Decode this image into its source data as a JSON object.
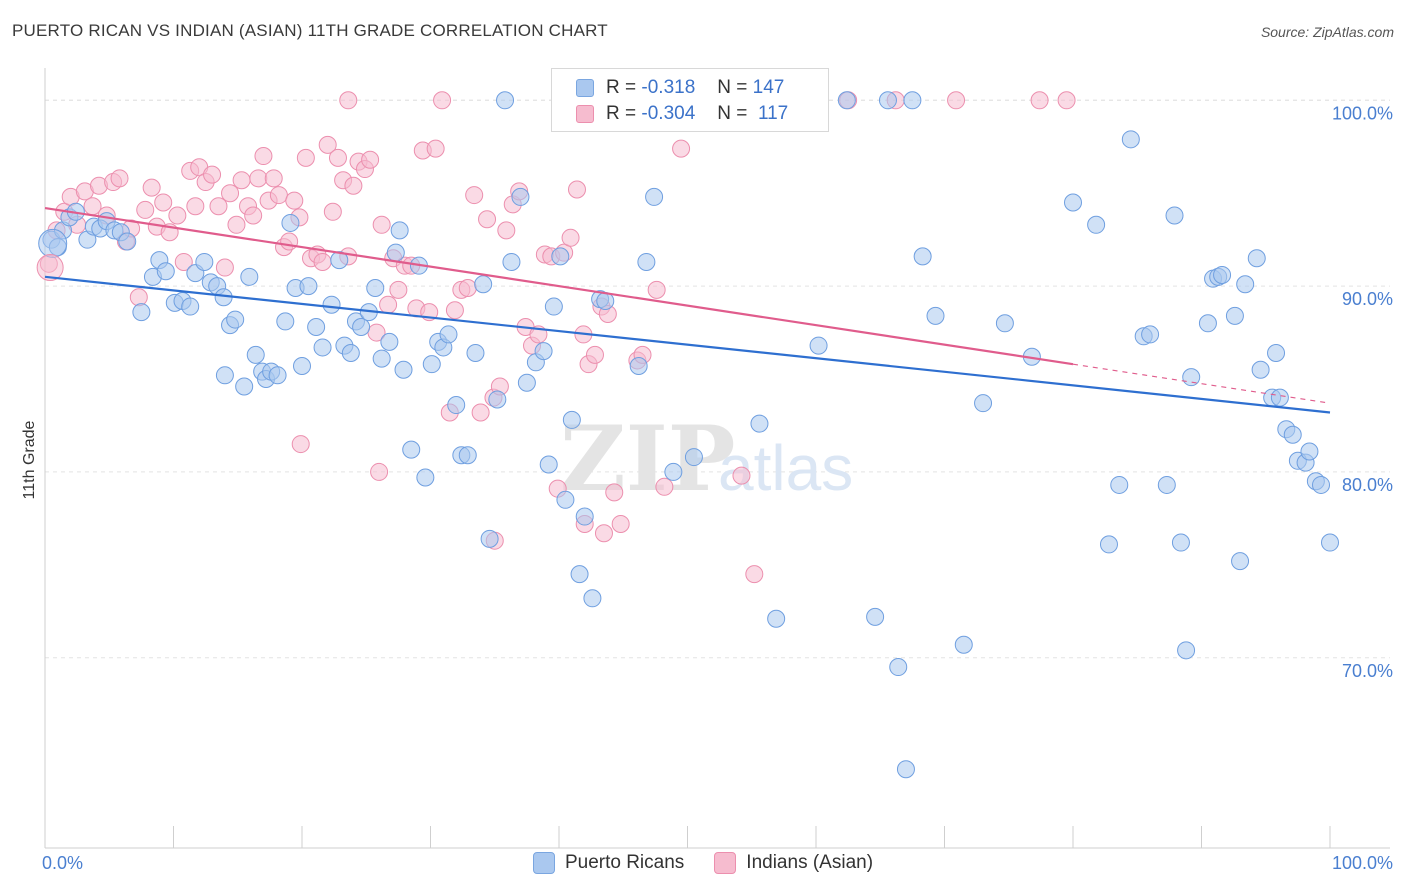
{
  "title": "PUERTO RICAN VS INDIAN (ASIAN) 11TH GRADE CORRELATION CHART",
  "source": "Source: ZipAtlas.com",
  "watermark": "ZIPatlas",
  "legend_top": {
    "rows": [
      {
        "r_label": "R =",
        "r_value": "-0.318",
        "n_label": "N =",
        "n_value": "147",
        "color": "#aac8ef",
        "border": "#7aa6e0"
      },
      {
        "r_label": "R =",
        "r_value": "-0.304",
        "n_label": "N =",
        "n_value": "117",
        "color": "#f6bccf",
        "border": "#ec8fae"
      }
    ]
  },
  "legend_bottom": {
    "items": [
      {
        "label": "Puerto Ricans",
        "color": "#aac8ef",
        "border": "#7aa6e0"
      },
      {
        "label": "Indians (Asian)",
        "color": "#f6bccf",
        "border": "#ec8fae"
      }
    ]
  },
  "chart_data": {
    "type": "scatter",
    "title": "PUERTO RICAN VS INDIAN (ASIAN) 11TH GRADE CORRELATION CHART",
    "xlabel": "",
    "ylabel": "11th Grade",
    "xlim": [
      0,
      100
    ],
    "ylim": [
      60.3,
      101.2
    ],
    "x_tick_labels": [
      "0.0%",
      "100.0%"
    ],
    "y_ticks": [
      70,
      80,
      90,
      100
    ],
    "y_tick_labels": [
      "70.0%",
      "80.0%",
      "90.0%",
      "100.0%"
    ],
    "grid": true,
    "series": [
      {
        "name": "Puerto Ricans",
        "color": "#aac8ef",
        "stroke": "#6f9fe0",
        "trend": {
          "x0": 0,
          "y0": 90.5,
          "x1": 100,
          "y1": 83.2,
          "color": "#2e6fd0"
        },
        "points": [
          [
            0.5,
            92.5
          ],
          [
            1.0,
            92.1
          ],
          [
            1.4,
            93.0
          ],
          [
            1.9,
            93.7
          ],
          [
            2.4,
            94.0
          ],
          [
            3.3,
            92.5
          ],
          [
            3.8,
            93.2
          ],
          [
            4.3,
            93.1
          ],
          [
            4.8,
            93.5
          ],
          [
            5.4,
            93.0
          ],
          [
            5.9,
            92.9
          ],
          [
            6.4,
            92.4
          ],
          [
            7.5,
            88.6
          ],
          [
            8.4,
            90.5
          ],
          [
            8.9,
            91.4
          ],
          [
            9.4,
            90.8
          ],
          [
            10.1,
            89.1
          ],
          [
            10.7,
            89.2
          ],
          [
            11.3,
            88.9
          ],
          [
            11.7,
            90.7
          ],
          [
            12.4,
            91.3
          ],
          [
            12.9,
            90.2
          ],
          [
            13.4,
            90.0
          ],
          [
            13.9,
            89.4
          ],
          [
            14.4,
            87.9
          ],
          [
            14.8,
            88.2
          ],
          [
            14.0,
            85.2
          ],
          [
            15.5,
            84.6
          ],
          [
            15.9,
            90.5
          ],
          [
            16.4,
            86.3
          ],
          [
            16.9,
            85.4
          ],
          [
            17.2,
            85.0
          ],
          [
            17.6,
            85.4
          ],
          [
            18.1,
            85.2
          ],
          [
            18.7,
            88.1
          ],
          [
            19.1,
            93.4
          ],
          [
            19.5,
            89.9
          ],
          [
            20.0,
            85.7
          ],
          [
            20.5,
            90.0
          ],
          [
            21.1,
            87.8
          ],
          [
            21.6,
            86.7
          ],
          [
            22.3,
            89.0
          ],
          [
            22.9,
            91.4
          ],
          [
            23.3,
            86.8
          ],
          [
            23.8,
            86.4
          ],
          [
            24.2,
            88.1
          ],
          [
            24.6,
            87.8
          ],
          [
            25.2,
            88.6
          ],
          [
            25.7,
            89.9
          ],
          [
            26.2,
            86.1
          ],
          [
            26.8,
            87.0
          ],
          [
            27.3,
            91.8
          ],
          [
            27.6,
            93.0
          ],
          [
            27.9,
            85.5
          ],
          [
            28.5,
            81.2
          ],
          [
            29.1,
            91.1
          ],
          [
            29.6,
            79.7
          ],
          [
            30.1,
            85.8
          ],
          [
            30.6,
            87.0
          ],
          [
            31.0,
            86.7
          ],
          [
            31.4,
            87.4
          ],
          [
            32.0,
            83.6
          ],
          [
            32.4,
            80.9
          ],
          [
            32.9,
            80.9
          ],
          [
            33.5,
            86.4
          ],
          [
            34.1,
            90.1
          ],
          [
            34.6,
            76.4
          ],
          [
            35.2,
            83.9
          ],
          [
            35.8,
            100.0
          ],
          [
            36.3,
            91.3
          ],
          [
            37.0,
            94.8
          ],
          [
            37.5,
            84.8
          ],
          [
            38.2,
            85.9
          ],
          [
            38.8,
            86.5
          ],
          [
            39.2,
            80.4
          ],
          [
            39.6,
            88.9
          ],
          [
            40.1,
            91.6
          ],
          [
            40.5,
            78.5
          ],
          [
            41.0,
            82.8
          ],
          [
            41.6,
            74.5
          ],
          [
            42.0,
            77.6
          ],
          [
            42.6,
            73.2
          ],
          [
            43.2,
            89.3
          ],
          [
            43.6,
            89.2
          ],
          [
            46.2,
            85.7
          ],
          [
            46.8,
            91.3
          ],
          [
            47.4,
            94.8
          ],
          [
            48.9,
            80.0
          ],
          [
            50.5,
            80.8
          ],
          [
            53.6,
            100.0
          ],
          [
            55.6,
            82.6
          ],
          [
            56.9,
            72.1
          ],
          [
            57.5,
            100.0
          ],
          [
            60.2,
            86.8
          ],
          [
            62.4,
            100.0
          ],
          [
            64.6,
            72.2
          ],
          [
            65.6,
            100.0
          ],
          [
            66.4,
            69.5
          ],
          [
            67.0,
            64.0
          ],
          [
            67.5,
            100.0
          ],
          [
            68.3,
            91.6
          ],
          [
            69.3,
            88.4
          ],
          [
            71.5,
            70.7
          ],
          [
            73.0,
            83.7
          ],
          [
            74.7,
            88.0
          ],
          [
            76.8,
            86.2
          ],
          [
            80.0,
            94.5
          ],
          [
            81.8,
            93.3
          ],
          [
            83.6,
            79.3
          ],
          [
            82.8,
            76.1
          ],
          [
            84.5,
            97.9
          ],
          [
            85.5,
            87.3
          ],
          [
            86.0,
            87.4
          ],
          [
            87.3,
            79.3
          ],
          [
            87.9,
            93.8
          ],
          [
            88.4,
            76.2
          ],
          [
            88.8,
            70.4
          ],
          [
            89.2,
            85.1
          ],
          [
            90.5,
            88.0
          ],
          [
            90.9,
            90.4
          ],
          [
            91.3,
            90.5
          ],
          [
            91.6,
            90.6
          ],
          [
            92.6,
            88.4
          ],
          [
            93.0,
            75.2
          ],
          [
            93.4,
            90.1
          ],
          [
            94.3,
            91.5
          ],
          [
            94.6,
            85.5
          ],
          [
            95.5,
            84.0
          ],
          [
            95.8,
            86.4
          ],
          [
            96.1,
            84.0
          ],
          [
            96.6,
            82.3
          ],
          [
            97.1,
            82.0
          ],
          [
            97.5,
            80.6
          ],
          [
            98.1,
            80.5
          ],
          [
            98.4,
            81.1
          ],
          [
            98.9,
            79.5
          ],
          [
            99.3,
            79.3
          ],
          [
            100.0,
            76.2
          ]
        ]
      },
      {
        "name": "Indians (Asian)",
        "color": "#f6bccf",
        "stroke": "#ec8fae",
        "trend": {
          "x0": 0,
          "y0": 94.2,
          "x1": 80,
          "y1": 85.8,
          "color": "#e05c8c",
          "dash_to_x": 100,
          "dash_to_y": 83.7
        },
        "points": [
          [
            0.3,
            91.2
          ],
          [
            0.9,
            93.0
          ],
          [
            1.5,
            94.0
          ],
          [
            2.0,
            94.8
          ],
          [
            2.5,
            93.3
          ],
          [
            3.1,
            95.1
          ],
          [
            3.7,
            94.3
          ],
          [
            4.2,
            95.4
          ],
          [
            4.8,
            93.8
          ],
          [
            5.3,
            95.6
          ],
          [
            5.8,
            95.8
          ],
          [
            6.3,
            92.4
          ],
          [
            6.7,
            93.1
          ],
          [
            7.3,
            89.4
          ],
          [
            7.8,
            94.1
          ],
          [
            8.3,
            95.3
          ],
          [
            8.7,
            93.2
          ],
          [
            9.2,
            94.5
          ],
          [
            9.7,
            92.9
          ],
          [
            10.3,
            93.8
          ],
          [
            10.8,
            91.3
          ],
          [
            11.3,
            96.2
          ],
          [
            11.7,
            94.3
          ],
          [
            12.0,
            96.4
          ],
          [
            12.5,
            95.6
          ],
          [
            13.0,
            96.0
          ],
          [
            13.5,
            94.3
          ],
          [
            14.0,
            91.0
          ],
          [
            14.4,
            95.0
          ],
          [
            14.9,
            93.3
          ],
          [
            15.3,
            95.7
          ],
          [
            15.8,
            94.3
          ],
          [
            16.2,
            93.8
          ],
          [
            16.6,
            95.8
          ],
          [
            17.0,
            97.0
          ],
          [
            17.4,
            94.6
          ],
          [
            17.8,
            95.8
          ],
          [
            18.2,
            94.9
          ],
          [
            18.6,
            92.1
          ],
          [
            19.0,
            92.4
          ],
          [
            19.4,
            94.6
          ],
          [
            19.8,
            93.7
          ],
          [
            20.3,
            96.9
          ],
          [
            20.7,
            91.5
          ],
          [
            21.2,
            91.7
          ],
          [
            21.6,
            91.3
          ],
          [
            22.0,
            97.6
          ],
          [
            22.4,
            94.0
          ],
          [
            22.8,
            96.9
          ],
          [
            23.2,
            95.7
          ],
          [
            23.6,
            91.6
          ],
          [
            24.0,
            95.4
          ],
          [
            24.4,
            96.7
          ],
          [
            24.9,
            96.3
          ],
          [
            25.3,
            96.8
          ],
          [
            25.8,
            87.5
          ],
          [
            26.2,
            93.3
          ],
          [
            26.7,
            89.0
          ],
          [
            27.1,
            91.5
          ],
          [
            27.5,
            89.8
          ],
          [
            28.0,
            91.1
          ],
          [
            28.5,
            91.1
          ],
          [
            28.9,
            88.8
          ],
          [
            29.4,
            97.3
          ],
          [
            29.9,
            88.6
          ],
          [
            30.4,
            97.4
          ],
          [
            30.9,
            100.0
          ],
          [
            31.5,
            83.2
          ],
          [
            31.9,
            88.7
          ],
          [
            32.4,
            89.8
          ],
          [
            32.9,
            89.9
          ],
          [
            33.4,
            94.9
          ],
          [
            33.9,
            83.2
          ],
          [
            34.4,
            93.6
          ],
          [
            34.9,
            84.0
          ],
          [
            35.4,
            84.6
          ],
          [
            35.9,
            93.0
          ],
          [
            36.4,
            94.4
          ],
          [
            36.9,
            95.1
          ],
          [
            37.4,
            87.8
          ],
          [
            37.9,
            86.8
          ],
          [
            38.4,
            87.4
          ],
          [
            38.9,
            91.7
          ],
          [
            39.4,
            91.6
          ],
          [
            39.9,
            79.1
          ],
          [
            40.4,
            91.8
          ],
          [
            40.9,
            92.6
          ],
          [
            41.4,
            95.2
          ],
          [
            41.9,
            87.4
          ],
          [
            42.3,
            85.8
          ],
          [
            42.8,
            86.3
          ],
          [
            43.3,
            88.9
          ],
          [
            43.8,
            88.5
          ],
          [
            44.3,
            78.9
          ],
          [
            44.8,
            77.2
          ],
          [
            45.3,
            99.3
          ],
          [
            45.7,
            100.0
          ],
          [
            46.1,
            86.0
          ],
          [
            46.5,
            86.3
          ],
          [
            46.9,
            100.0
          ],
          [
            47.6,
            89.8
          ],
          [
            48.2,
            79.2
          ],
          [
            49.5,
            97.4
          ],
          [
            51.5,
            100.0
          ],
          [
            54.2,
            79.8
          ],
          [
            55.2,
            74.5
          ],
          [
            59.3,
            100.0
          ],
          [
            62.5,
            100.0
          ],
          [
            66.2,
            100.0
          ],
          [
            70.9,
            100.0
          ],
          [
            77.4,
            100.0
          ],
          [
            79.5,
            100.0
          ],
          [
            35.0,
            76.3
          ],
          [
            23.6,
            100.0
          ],
          [
            19.9,
            81.5
          ],
          [
            26.0,
            80.0
          ],
          [
            43.5,
            76.7
          ],
          [
            42.0,
            77.2
          ]
        ]
      }
    ]
  }
}
